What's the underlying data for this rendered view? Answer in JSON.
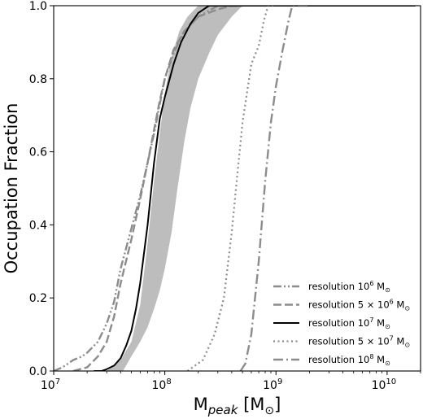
{
  "chart_data": {
    "type": "line",
    "title": "",
    "xlabel": {
      "main": "M",
      "sub": "peak",
      "unit": " [M",
      "unit_sub": "⊙",
      "close": "]"
    },
    "ylabel": "Occupation Fraction",
    "xscale": "log",
    "xlim": [
      10000000.0,
      20000000000.0
    ],
    "ylim": [
      0,
      1.0
    ],
    "xticks": [
      {
        "value": 10000000.0,
        "base": "10",
        "exp": "7"
      },
      {
        "value": 100000000.0,
        "base": "10",
        "exp": "8"
      },
      {
        "value": 1000000000.0,
        "base": "10",
        "exp": "9"
      },
      {
        "value": 10000000000.0,
        "base": "10",
        "exp": "10"
      }
    ],
    "yticks": [
      "0.0",
      "0.2",
      "0.4",
      "0.6",
      "0.8",
      "1.0"
    ],
    "grid": false,
    "legend_position": "lower-right",
    "band": {
      "color": "#bdbdbd",
      "lower": [
        [
          16000000.0,
          0
        ],
        [
          30000000.0,
          0.0
        ],
        [
          40000000.0,
          0.03
        ],
        [
          50000000.0,
          0.08
        ],
        [
          60000000.0,
          0.18
        ],
        [
          70000000.0,
          0.35
        ],
        [
          80000000.0,
          0.52
        ],
        [
          90000000.0,
          0.65
        ],
        [
          100000000.0,
          0.76
        ],
        [
          115000000.0,
          0.86
        ],
        [
          135000000.0,
          0.93
        ],
        [
          160000000.0,
          0.97
        ],
        [
          200000000.0,
          1.0
        ]
      ],
      "upper": [
        [
          42000000.0,
          0
        ],
        [
          50000000.0,
          0.04
        ],
        [
          60000000.0,
          0.08
        ],
        [
          70000000.0,
          0.12
        ],
        [
          80000000.0,
          0.17
        ],
        [
          90000000.0,
          0.22
        ],
        [
          100000000.0,
          0.28
        ],
        [
          115000000.0,
          0.38
        ],
        [
          130000000.0,
          0.5
        ],
        [
          150000000.0,
          0.63
        ],
        [
          170000000.0,
          0.72
        ],
        [
          200000000.0,
          0.8
        ],
        [
          250000000.0,
          0.87
        ],
        [
          300000000.0,
          0.92
        ],
        [
          400000000.0,
          0.97
        ],
        [
          500000000.0,
          1.0
        ]
      ]
    },
    "series": [
      {
        "legend_main": "resolution 10",
        "legend_sup": "6",
        "legend_tail": " M",
        "legend_sub": "⊙",
        "color": "#8c8c8c",
        "dash": "10,3,2,3,2,3",
        "width": 2.4,
        "points": [
          [
            10000000.0,
            0.0
          ],
          [
            12000000.0,
            0.01
          ],
          [
            15000000.0,
            0.03
          ],
          [
            18000000.0,
            0.04
          ],
          [
            20000000.0,
            0.05
          ],
          [
            25000000.0,
            0.08
          ],
          [
            30000000.0,
            0.13
          ],
          [
            35000000.0,
            0.19
          ],
          [
            40000000.0,
            0.28
          ],
          [
            50000000.0,
            0.39
          ],
          [
            60000000.0,
            0.48
          ],
          [
            70000000.0,
            0.57
          ],
          [
            80000000.0,
            0.65
          ],
          [
            90000000.0,
            0.73
          ],
          [
            100000000.0,
            0.8
          ],
          [
            120000000.0,
            0.87
          ],
          [
            150000000.0,
            0.93
          ],
          [
            200000000.0,
            0.97
          ],
          [
            300000000.0,
            1.0
          ],
          [
            500000000.0,
            1.0
          ]
        ]
      },
      {
        "legend_main": "resolution 5 × 10",
        "legend_sup": "6",
        "legend_tail": " M",
        "legend_sub": "⊙",
        "color": "#8c8c8c",
        "dash": "10,4",
        "width": 2.4,
        "points": [
          [
            15000000.0,
            0.0
          ],
          [
            20000000.0,
            0.01
          ],
          [
            25000000.0,
            0.04
          ],
          [
            30000000.0,
            0.08
          ],
          [
            35000000.0,
            0.15
          ],
          [
            40000000.0,
            0.24
          ],
          [
            50000000.0,
            0.36
          ],
          [
            60000000.0,
            0.47
          ],
          [
            70000000.0,
            0.57
          ],
          [
            80000000.0,
            0.66
          ],
          [
            90000000.0,
            0.74
          ],
          [
            100000000.0,
            0.8
          ],
          [
            120000000.0,
            0.88
          ],
          [
            150000000.0,
            0.93
          ],
          [
            200000000.0,
            0.97
          ],
          [
            300000000.0,
            0.99
          ],
          [
            400000000.0,
            1.0
          ],
          [
            500000000.0,
            1.0
          ]
        ]
      },
      {
        "legend_main": "resolution 10",
        "legend_sup": "7",
        "legend_tail": " M",
        "legend_sub": "⊙",
        "color": "#000000",
        "dash": "",
        "width": 2.0,
        "points": [
          [
            23000000.0,
            0.0
          ],
          [
            27000000.0,
            0.0
          ],
          [
            30000000.0,
            0.005
          ],
          [
            35000000.0,
            0.015
          ],
          [
            40000000.0,
            0.035
          ],
          [
            45000000.0,
            0.07
          ],
          [
            50000000.0,
            0.11
          ],
          [
            55000000.0,
            0.17
          ],
          [
            60000000.0,
            0.24
          ],
          [
            70000000.0,
            0.4
          ],
          [
            80000000.0,
            0.57
          ],
          [
            90000000.0,
            0.69
          ],
          [
            100000000.0,
            0.75
          ],
          [
            120000000.0,
            0.84
          ],
          [
            140000000.0,
            0.9
          ],
          [
            170000000.0,
            0.95
          ],
          [
            200000000.0,
            0.98
          ],
          [
            250000000.0,
            1.0
          ],
          [
            18000000000.0,
            1.0
          ]
        ]
      },
      {
        "legend_main": "resolution 5 × 10",
        "legend_sup": "7",
        "legend_tail": " M",
        "legend_sub": "⊙",
        "color": "#8c8c8c",
        "dash": "2,3.5",
        "width": 2.2,
        "points": [
          [
            160000000.0,
            0.0
          ],
          [
            220000000.0,
            0.03
          ],
          [
            280000000.0,
            0.1
          ],
          [
            340000000.0,
            0.2
          ],
          [
            400000000.0,
            0.38
          ],
          [
            450000000.0,
            0.54
          ],
          [
            500000000.0,
            0.68
          ],
          [
            600000000.0,
            0.84
          ],
          [
            700000000.0,
            0.89
          ],
          [
            780000000.0,
            0.96
          ],
          [
            850000000.0,
            1.0
          ],
          [
            1000000000.0,
            1.0
          ]
        ]
      },
      {
        "legend_main": "resolution 10",
        "legend_sup": "8",
        "legend_tail": " M",
        "legend_sub": "⊙",
        "color": "#8c8c8c",
        "dash": "12,4,2,4",
        "width": 2.4,
        "points": [
          [
            480000000.0,
            0.0
          ],
          [
            530000000.0,
            0.02
          ],
          [
            600000000.0,
            0.1
          ],
          [
            700000000.0,
            0.3
          ],
          [
            800000000.0,
            0.52
          ],
          [
            900000000.0,
            0.68
          ],
          [
            1000000000.0,
            0.78
          ],
          [
            1150000000.0,
            0.88
          ],
          [
            1300000000.0,
            0.96
          ],
          [
            1400000000.0,
            1.0
          ],
          [
            2000000000.0,
            1.0
          ]
        ]
      }
    ]
  }
}
